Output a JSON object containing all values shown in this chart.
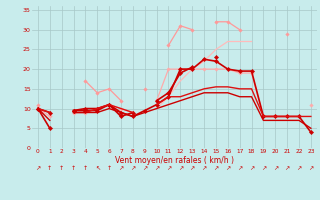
{
  "bg_color": "#c8ecec",
  "grid_color": "#a8c8c8",
  "xlabel": "Vent moyen/en rafales ( km/h )",
  "xlim": [
    -0.5,
    23.5
  ],
  "ylim": [
    0,
    36
  ],
  "yticks": [
    0,
    5,
    10,
    15,
    20,
    25,
    30,
    35
  ],
  "xticks": [
    0,
    1,
    2,
    3,
    4,
    5,
    6,
    7,
    8,
    9,
    10,
    11,
    12,
    13,
    14,
    15,
    16,
    17,
    18,
    19,
    20,
    21,
    22,
    23
  ],
  "arrow_labels": [
    "↗",
    "↑",
    "↑",
    "↑",
    "↑",
    "↖",
    "↑",
    "↗",
    "↗",
    "↗",
    "↗",
    "↗",
    "↗",
    "↗",
    "↗",
    "↗",
    "↗",
    "↗",
    "↗",
    "↗",
    "↗",
    "↗",
    "↗",
    "↗"
  ],
  "series": [
    {
      "name": "pink_upper_rafales",
      "color": "#ff9999",
      "lw": 0.9,
      "marker": "D",
      "ms": 1.8,
      "y": [
        null,
        null,
        null,
        null,
        null,
        null,
        null,
        null,
        null,
        null,
        null,
        26,
        31,
        30,
        null,
        32,
        32,
        30,
        null,
        null,
        null,
        29,
        null,
        null
      ]
    },
    {
      "name": "pink_upper_connected",
      "color": "#ff9999",
      "lw": 0.9,
      "marker": "D",
      "ms": 1.8,
      "y": [
        11,
        null,
        null,
        null,
        17,
        14,
        15,
        12,
        null,
        15,
        null,
        null,
        null,
        null,
        null,
        null,
        null,
        null,
        null,
        null,
        null,
        null,
        null,
        null
      ]
    },
    {
      "name": "pink_mid_line",
      "color": "#ffaaaa",
      "lw": 0.9,
      "marker": "D",
      "ms": 1.8,
      "y": [
        10,
        8,
        null,
        9,
        9,
        10,
        11,
        10,
        9,
        null,
        12,
        20,
        20,
        20,
        20,
        20,
        20,
        19,
        19,
        8,
        8,
        8,
        null,
        11
      ]
    },
    {
      "name": "pale_pink_rising",
      "color": "#ffbbbb",
      "lw": 0.9,
      "marker": null,
      "ms": 0,
      "y": [
        null,
        null,
        null,
        null,
        null,
        null,
        null,
        null,
        null,
        null,
        10,
        13,
        17,
        20,
        22,
        25,
        27,
        27,
        27,
        null,
        null,
        28,
        null,
        null
      ]
    },
    {
      "name": "dark_red_main",
      "color": "#cc0000",
      "lw": 1.2,
      "marker": "D",
      "ms": 2.2,
      "y": [
        10,
        5,
        null,
        9.5,
        9.5,
        9.5,
        11,
        9,
        8,
        9.5,
        11,
        13,
        20,
        20,
        22.5,
        22,
        20,
        19.5,
        19.5,
        8,
        8,
        8,
        8,
        4
      ]
    },
    {
      "name": "dark_red_second",
      "color": "#cc0000",
      "lw": 1.2,
      "marker": "D",
      "ms": 2.2,
      "y": [
        10,
        9,
        null,
        9.5,
        10,
        10,
        11,
        8,
        9,
        null,
        12,
        14,
        19,
        20.5,
        null,
        23,
        null,
        null,
        null,
        8,
        null,
        null,
        null,
        null
      ]
    },
    {
      "name": "dark_red_flat",
      "color": "#dd1111",
      "lw": 1.0,
      "marker": null,
      "ms": 0,
      "y": [
        10,
        9,
        null,
        9,
        9,
        10,
        11,
        10,
        9,
        null,
        11,
        13,
        13,
        14,
        15,
        15.5,
        15.5,
        15,
        15,
        8,
        8,
        8,
        8,
        8
      ]
    },
    {
      "name": "dark_red_low",
      "color": "#cc0000",
      "lw": 1.0,
      "marker": null,
      "ms": 0,
      "y": [
        10,
        7,
        null,
        9,
        9,
        9,
        10,
        9,
        8,
        9,
        10,
        11,
        12,
        13,
        14,
        14,
        14,
        13,
        13,
        7,
        7,
        7,
        7,
        5
      ]
    }
  ]
}
